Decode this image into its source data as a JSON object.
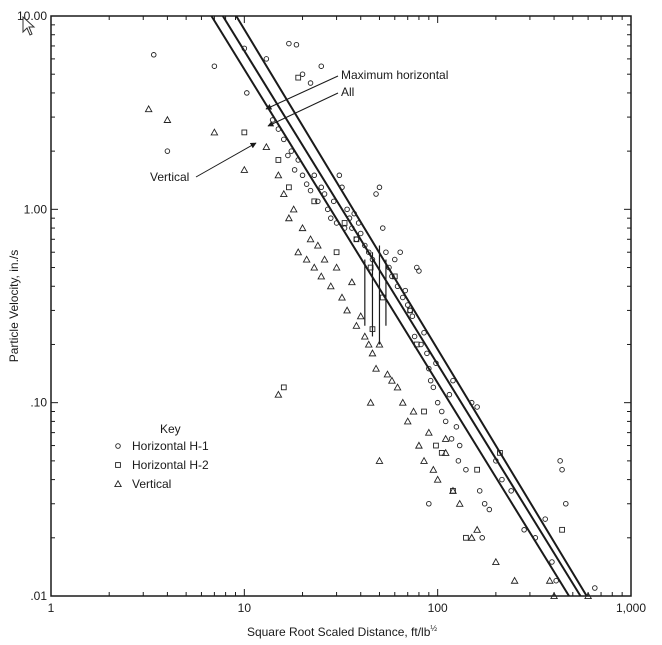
{
  "chart_data": {
    "type": "scatter",
    "x_scale": "log",
    "y_scale": "log",
    "xlim": [
      1,
      1000
    ],
    "ylim": [
      0.01,
      10
    ],
    "xlabel": "Square Root Scaled Distance, ft/lb",
    "xlabel_sup": "½",
    "ylabel": "Particle Velocity, in./s",
    "x_ticks": [
      {
        "value": 1,
        "label": "1"
      },
      {
        "value": 10,
        "label": "10"
      },
      {
        "value": 100,
        "label": "100"
      },
      {
        "value": 1000,
        "label": "1,000"
      }
    ],
    "y_ticks": [
      {
        "value": 0.01,
        "label": ".01"
      },
      {
        "value": 0.1,
        "label": ".10"
      },
      {
        "value": 1,
        "label": "1.00"
      },
      {
        "value": 10,
        "label": "10.00"
      }
    ],
    "grid": false,
    "legend": {
      "title": "Key",
      "placement": "bottom-left",
      "entries": [
        {
          "label": "Horizontal H-1",
          "marker": "circle"
        },
        {
          "label": "Horizontal H-2",
          "marker": "square"
        },
        {
          "label": "Vertical",
          "marker": "triangle"
        }
      ]
    },
    "series": [
      {
        "name": "Horizontal H-1",
        "marker": "circle",
        "points": [
          [
            3.4,
            6.3
          ],
          [
            4.0,
            2.0
          ],
          [
            7.0,
            5.5
          ],
          [
            10.0,
            6.8
          ],
          [
            10.3,
            4.0
          ],
          [
            13.0,
            6.0
          ],
          [
            17.0,
            7.2
          ],
          [
            18.6,
            7.1
          ],
          [
            20.0,
            5.0
          ],
          [
            22.0,
            4.5
          ],
          [
            25.0,
            5.5
          ],
          [
            14.0,
            2.9
          ],
          [
            15.0,
            2.6
          ],
          [
            16.0,
            2.3
          ],
          [
            16.8,
            1.9
          ],
          [
            17.5,
            2.0
          ],
          [
            18.2,
            1.6
          ],
          [
            19.0,
            1.8
          ],
          [
            20.0,
            1.5
          ],
          [
            21.0,
            1.35
          ],
          [
            22.0,
            1.25
          ],
          [
            23.0,
            1.5
          ],
          [
            24.0,
            1.1
          ],
          [
            25.0,
            1.3
          ],
          [
            26.0,
            1.2
          ],
          [
            27.0,
            1.0
          ],
          [
            28.0,
            0.9
          ],
          [
            29.0,
            1.1
          ],
          [
            30.0,
            0.85
          ],
          [
            31.0,
            1.5
          ],
          [
            32.0,
            1.3
          ],
          [
            33.0,
            0.8
          ],
          [
            34.0,
            1.0
          ],
          [
            35.0,
            0.9
          ],
          [
            36.0,
            0.8
          ],
          [
            37.0,
            0.95
          ],
          [
            38.0,
            0.7
          ],
          [
            39.0,
            0.85
          ],
          [
            40.0,
            0.75
          ],
          [
            42.0,
            0.65
          ],
          [
            44.0,
            0.6
          ],
          [
            46.0,
            0.55
          ],
          [
            48.0,
            1.2
          ],
          [
            50.0,
            1.3
          ],
          [
            52.0,
            0.8
          ],
          [
            54.0,
            0.6
          ],
          [
            56.0,
            0.5
          ],
          [
            58.0,
            0.45
          ],
          [
            60.0,
            0.55
          ],
          [
            62.0,
            0.4
          ],
          [
            64.0,
            0.6
          ],
          [
            66.0,
            0.35
          ],
          [
            68.0,
            0.38
          ],
          [
            70.0,
            0.32
          ],
          [
            72.0,
            0.3
          ],
          [
            74.0,
            0.28
          ],
          [
            76.0,
            0.22
          ],
          [
            78.0,
            0.5
          ],
          [
            80.0,
            0.48
          ],
          [
            82.0,
            0.2
          ],
          [
            85.0,
            0.23
          ],
          [
            88.0,
            0.18
          ],
          [
            90.0,
            0.15
          ],
          [
            92.0,
            0.13
          ],
          [
            95.0,
            0.12
          ],
          [
            98.0,
            0.16
          ],
          [
            100.0,
            0.1
          ],
          [
            105.0,
            0.09
          ],
          [
            110.0,
            0.08
          ],
          [
            115.0,
            0.11
          ],
          [
            118.0,
            0.065
          ],
          [
            120.0,
            0.13
          ],
          [
            125.0,
            0.075
          ],
          [
            128.0,
            0.05
          ],
          [
            130.0,
            0.06
          ],
          [
            140.0,
            0.045
          ],
          [
            150.0,
            0.1
          ],
          [
            160.0,
            0.095
          ],
          [
            165.0,
            0.035
          ],
          [
            175.0,
            0.03
          ],
          [
            185.0,
            0.028
          ],
          [
            200.0,
            0.05
          ],
          [
            215.0,
            0.04
          ],
          [
            240.0,
            0.035
          ],
          [
            280.0,
            0.022
          ],
          [
            320.0,
            0.02
          ],
          [
            360.0,
            0.025
          ],
          [
            390.0,
            0.015
          ],
          [
            410.0,
            0.012
          ],
          [
            430.0,
            0.05
          ],
          [
            440.0,
            0.045
          ],
          [
            460.0,
            0.03
          ],
          [
            650.0,
            0.011
          ],
          [
            90.0,
            0.03
          ],
          [
            170.0,
            0.02
          ]
        ]
      },
      {
        "name": "Horizontal H-2",
        "marker": "square",
        "points": [
          [
            10.0,
            2.5
          ],
          [
            19.0,
            4.8
          ],
          [
            15.0,
            1.8
          ],
          [
            17.0,
            1.3
          ],
          [
            23.0,
            1.1
          ],
          [
            30.0,
            0.6
          ],
          [
            33.0,
            0.85
          ],
          [
            38.0,
            0.7
          ],
          [
            45.0,
            0.5
          ],
          [
            52.0,
            0.35
          ],
          [
            60.0,
            0.45
          ],
          [
            72.0,
            0.3
          ],
          [
            78.0,
            0.2
          ],
          [
            85.0,
            0.09
          ],
          [
            98.0,
            0.06
          ],
          [
            105.0,
            0.055
          ],
          [
            120.0,
            0.035
          ],
          [
            140.0,
            0.02
          ],
          [
            160.0,
            0.045
          ],
          [
            210.0,
            0.055
          ],
          [
            440.0,
            0.022
          ],
          [
            16.0,
            0.12
          ],
          [
            46.0,
            0.24
          ]
        ]
      },
      {
        "name": "Vertical",
        "marker": "triangle",
        "points": [
          [
            3.2,
            3.3
          ],
          [
            4.0,
            2.9
          ],
          [
            7.0,
            2.5
          ],
          [
            10.0,
            1.6
          ],
          [
            13.0,
            2.1
          ],
          [
            15.0,
            1.5
          ],
          [
            16.0,
            1.2
          ],
          [
            17.0,
            0.9
          ],
          [
            18.0,
            1.0
          ],
          [
            19.0,
            0.6
          ],
          [
            20.0,
            0.8
          ],
          [
            21.0,
            0.55
          ],
          [
            22.0,
            0.7
          ],
          [
            23.0,
            0.5
          ],
          [
            24.0,
            0.65
          ],
          [
            25.0,
            0.45
          ],
          [
            26.0,
            0.55
          ],
          [
            28.0,
            0.4
          ],
          [
            30.0,
            0.5
          ],
          [
            32.0,
            0.35
          ],
          [
            34.0,
            0.3
          ],
          [
            36.0,
            0.42
          ],
          [
            38.0,
            0.25
          ],
          [
            40.0,
            0.28
          ],
          [
            42.0,
            0.22
          ],
          [
            44.0,
            0.2
          ],
          [
            46.0,
            0.18
          ],
          [
            48.0,
            0.15
          ],
          [
            50.0,
            0.2
          ],
          [
            55.0,
            0.14
          ],
          [
            58.0,
            0.13
          ],
          [
            62.0,
            0.12
          ],
          [
            66.0,
            0.1
          ],
          [
            70.0,
            0.08
          ],
          [
            75.0,
            0.09
          ],
          [
            80.0,
            0.06
          ],
          [
            85.0,
            0.05
          ],
          [
            90.0,
            0.07
          ],
          [
            95.0,
            0.045
          ],
          [
            100.0,
            0.04
          ],
          [
            110.0,
            0.055
          ],
          [
            120.0,
            0.035
          ],
          [
            130.0,
            0.03
          ],
          [
            150.0,
            0.02
          ],
          [
            160.0,
            0.022
          ],
          [
            200.0,
            0.015
          ],
          [
            250.0,
            0.012
          ],
          [
            380.0,
            0.012
          ],
          [
            400.0,
            0.01
          ],
          [
            600.0,
            0.01
          ],
          [
            15.0,
            0.11
          ],
          [
            45.0,
            0.1
          ],
          [
            50.0,
            0.05
          ],
          [
            110.0,
            0.065
          ]
        ]
      }
    ],
    "fit_lines": [
      {
        "name": "Maximum horizontal",
        "points": [
          [
            9.08,
            10
          ],
          [
            590,
            0.01
          ]
        ]
      },
      {
        "name": "All",
        "points": [
          [
            7.74,
            10
          ],
          [
            548,
            0.01
          ]
        ]
      },
      {
        "name": "Vertical",
        "points": [
          [
            6.76,
            10
          ],
          [
            478,
            0.01
          ]
        ]
      }
    ],
    "range_bars": [
      {
        "x": 42,
        "y_low": 0.25,
        "y_high": 0.55
      },
      {
        "x": 46,
        "y_low": 0.22,
        "y_high": 0.6
      },
      {
        "x": 50,
        "y_low": 0.2,
        "y_high": 0.65
      },
      {
        "x": 54,
        "y_low": 0.25,
        "y_high": 0.55
      }
    ],
    "annotations": [
      {
        "text": "Maximum horizontal",
        "points_to": "Maximum horizontal"
      },
      {
        "text": "All",
        "points_to": "All"
      },
      {
        "text": "Vertical",
        "points_to": "Vertical"
      }
    ]
  }
}
